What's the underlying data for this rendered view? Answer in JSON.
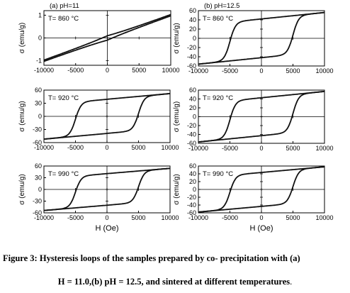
{
  "caption": {
    "line1": "Figure 3: Hysteresis loops of the samples prepared by co- precipitation with (a)",
    "line2": "H = 11.0,(b) pH = 12.5, and sintered at different temperatures",
    "line2_tail": "."
  },
  "chart_data": [
    {
      "type": "line",
      "column_label": "(a) pH=11",
      "annotation": "T= 860 °C",
      "xlabel": "",
      "ylabel": "σ (emu/g)",
      "xlim": [
        -10000,
        10000
      ],
      "ylim": [
        -1.2,
        1.2
      ],
      "xticks": [
        "-10000",
        "-5000",
        "0",
        "5000",
        "10000"
      ],
      "yticks": [
        1,
        0,
        -1
      ],
      "ytick_labels": [
        "1",
        "0",
        "-1"
      ],
      "loop": {
        "Ms": 1.0,
        "Hc": 250,
        "Mr": 0.12,
        "shape": "linear"
      }
    },
    {
      "type": "line",
      "column_label": "(b) pH=12.5",
      "annotation": "T= 860 °C",
      "xlabel": "",
      "ylabel": "σ (emu/g)",
      "xlim": [
        -10000,
        10000
      ],
      "ylim": [
        -60,
        60
      ],
      "xticks": [
        "-10000",
        "-5000",
        "0",
        "5000",
        "10000"
      ],
      "yticks": [
        60,
        40,
        20,
        0,
        -20,
        -40,
        -60
      ],
      "ytick_labels": [
        "60",
        "40",
        "20",
        "0",
        "-20",
        "-40",
        "-60"
      ],
      "loop": {
        "Ms": 56,
        "Hc": 5000,
        "Mr": 33,
        "shape": "square"
      }
    },
    {
      "type": "line",
      "column_label": "",
      "annotation": "T= 920 °C",
      "xlabel": "",
      "ylabel": "σ (emu/g)",
      "xlim": [
        -10000,
        10000
      ],
      "ylim": [
        -60,
        60
      ],
      "xticks": [
        "-10000",
        "-5000",
        "0",
        "5000",
        "10000"
      ],
      "yticks": [
        60,
        30,
        0,
        -30,
        -60
      ],
      "ytick_labels": [
        "60",
        "30",
        "0",
        "-30",
        "-60"
      ],
      "loop": {
        "Ms": 52,
        "Hc": 5000,
        "Mr": 30,
        "shape": "square"
      }
    },
    {
      "type": "line",
      "column_label": "",
      "annotation": "T= 920 °C",
      "xlabel": "",
      "ylabel": "σ (emu/g)",
      "xlim": [
        -10000,
        10000
      ],
      "ylim": [
        -60,
        60
      ],
      "xticks": [
        "-10000",
        "-5000",
        "0",
        "5000",
        "10000"
      ],
      "yticks": [
        60,
        40,
        20,
        0,
        -20,
        -40,
        -60
      ],
      "ytick_labels": [
        "60",
        "40",
        "20",
        "0",
        "-20",
        "-40",
        "-60"
      ],
      "loop": {
        "Ms": 57,
        "Hc": 5000,
        "Mr": 33,
        "shape": "square"
      }
    },
    {
      "type": "line",
      "column_label": "",
      "annotation": "T= 990 °C",
      "xlabel": "H (Oe)",
      "ylabel": "σ (emu/g)",
      "xlim": [
        -10000,
        10000
      ],
      "ylim": [
        -60,
        60
      ],
      "xticks": [
        "-10000",
        "-5000",
        "0",
        "5000",
        "10000"
      ],
      "yticks": [
        60,
        30,
        0,
        -30,
        -60
      ],
      "ytick_labels": [
        "60",
        "30",
        "0",
        "-30",
        "-60"
      ],
      "loop": {
        "Ms": 54,
        "Hc": 5000,
        "Mr": 30,
        "shape": "square"
      }
    },
    {
      "type": "line",
      "column_label": "",
      "annotation": "T= 990 °C",
      "xlabel": "H (Oe)",
      "ylabel": "σ (emu/g)",
      "xlim": [
        -10000,
        10000
      ],
      "ylim": [
        -60,
        60
      ],
      "xticks": [
        "-10000",
        "-5000",
        "0",
        "5000",
        "10000"
      ],
      "yticks": [
        60,
        40,
        20,
        0,
        -20,
        -40,
        -60
      ],
      "ytick_labels": [
        "60",
        "40",
        "20",
        "0",
        "-20",
        "-40",
        "-60"
      ],
      "loop": {
        "Ms": 58,
        "Hc": 5000,
        "Mr": 33,
        "shape": "square"
      }
    }
  ]
}
